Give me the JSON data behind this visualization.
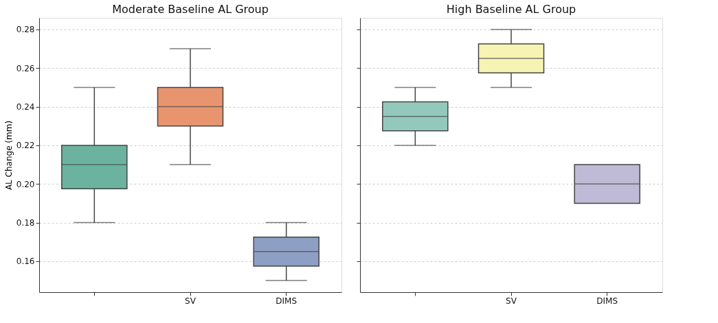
{
  "chart_data": [
    {
      "type": "box",
      "title": "Moderate Baseline AL Group",
      "ylabel": "AL Change (mm)",
      "categories": [
        null,
        "SV",
        "DIMS"
      ],
      "colors": [
        "#6bb39e",
        "#e8956f",
        "#8e9fc4"
      ],
      "ylim": [
        0.144,
        0.286
      ],
      "yticks": [
        0.16,
        0.18,
        {
          "value": 0.2,
          "label": "0.20"
        },
        0.22,
        0.24,
        0.26,
        0.28
      ],
      "grid": "y",
      "boxes": [
        {
          "low": 0.18,
          "q1": 0.1975,
          "median": 0.21,
          "q3": 0.22,
          "high": 0.25
        },
        {
          "low": 0.21,
          "q1": 0.23,
          "median": 0.24,
          "q3": 0.25,
          "high": 0.27
        },
        {
          "low": 0.15,
          "q1": 0.1575,
          "median": 0.165,
          "q3": 0.1725,
          "high": 0.18
        }
      ]
    },
    {
      "type": "box",
      "title": "High Baseline AL Group",
      "categories": [
        null,
        "SV",
        "DIMS"
      ],
      "colors": [
        "#93c9bd",
        "#f6f3b3",
        "#bfbad6"
      ],
      "ylim": [
        0.144,
        0.286
      ],
      "yticks": [
        0.16,
        0.18,
        0.2,
        0.22,
        0.24,
        0.26,
        0.28
      ],
      "grid": "y",
      "tick_labels": "x",
      "boxes": [
        {
          "low": 0.22,
          "q1": 0.2275,
          "median": 0.235,
          "q3": 0.2425,
          "high": 0.25
        },
        {
          "low": 0.25,
          "q1": 0.2575,
          "median": 0.265,
          "q3": 0.2725,
          "high": 0.28
        },
        {
          "low": 0.19,
          "q1": 0.19,
          "median": 0.2,
          "q3": 0.21,
          "high": 0.21
        }
      ]
    }
  ]
}
